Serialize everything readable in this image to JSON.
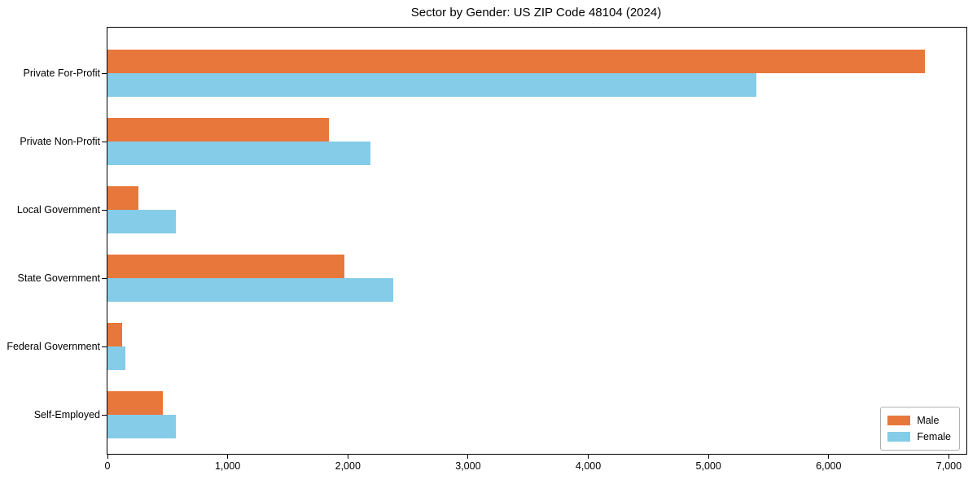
{
  "chart_data": {
    "type": "bar",
    "orientation": "horizontal",
    "title": "Sector by Gender: US ZIP Code 48104 (2024)",
    "xlabel": "",
    "ylabel": "",
    "categories": [
      "Private For-Profit",
      "Private Non-Profit",
      "Local Government",
      "State Government",
      "Federal Government",
      "Self-Employed"
    ],
    "series": [
      {
        "name": "Male",
        "color": "#e8773c",
        "values": [
          6800,
          1840,
          260,
          1970,
          125,
          460
        ]
      },
      {
        "name": "Female",
        "color": "#85cce8",
        "values": [
          5400,
          2190,
          570,
          2380,
          150,
          570
        ]
      }
    ],
    "xlim": [
      0,
      7146
    ],
    "xticks": [
      0,
      1000,
      2000,
      3000,
      4000,
      5000,
      6000,
      7000
    ],
    "xtick_labels": [
      "0",
      "1,000",
      "2,000",
      "3,000",
      "4,000",
      "5,000",
      "6,000",
      "7,000"
    ],
    "grid": false,
    "legend": {
      "position": "lower right",
      "entries": [
        "Male",
        "Female"
      ]
    },
    "axis_color": "#000000",
    "background_color": "#ffffff"
  }
}
